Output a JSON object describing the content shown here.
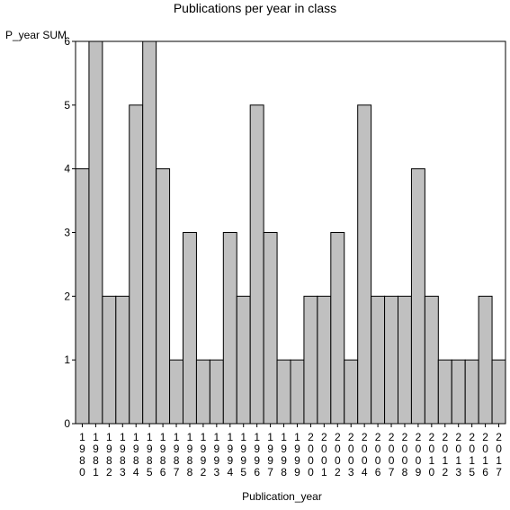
{
  "chart_data": {
    "type": "bar",
    "title": "Publications per year in class",
    "ylabel": "P_year SUM",
    "xlabel": "Publication_year",
    "ylim": [
      0,
      6
    ],
    "yticks": [
      0,
      1,
      2,
      3,
      4,
      5,
      6
    ],
    "grid": false,
    "colors": {
      "bar": "#c0c0c0",
      "edge": "#000000",
      "background": "#ffffff"
    },
    "categories": [
      "1980",
      "1981",
      "1982",
      "1983",
      "1984",
      "1985",
      "1986",
      "1987",
      "1988",
      "1992",
      "1993",
      "1994",
      "1995",
      "1996",
      "1997",
      "1998",
      "1999",
      "2000",
      "2001",
      "2002",
      "2003",
      "2004",
      "2006",
      "2007",
      "2008",
      "2009",
      "2010",
      "2012",
      "2013",
      "2015",
      "2016",
      "2017"
    ],
    "values": [
      4,
      6,
      2,
      2,
      5,
      6,
      4,
      1,
      3,
      1,
      1,
      3,
      2,
      5,
      3,
      1,
      1,
      2,
      2,
      3,
      1,
      5,
      2,
      2,
      2,
      4,
      2,
      1,
      1,
      1,
      2,
      1
    ]
  }
}
